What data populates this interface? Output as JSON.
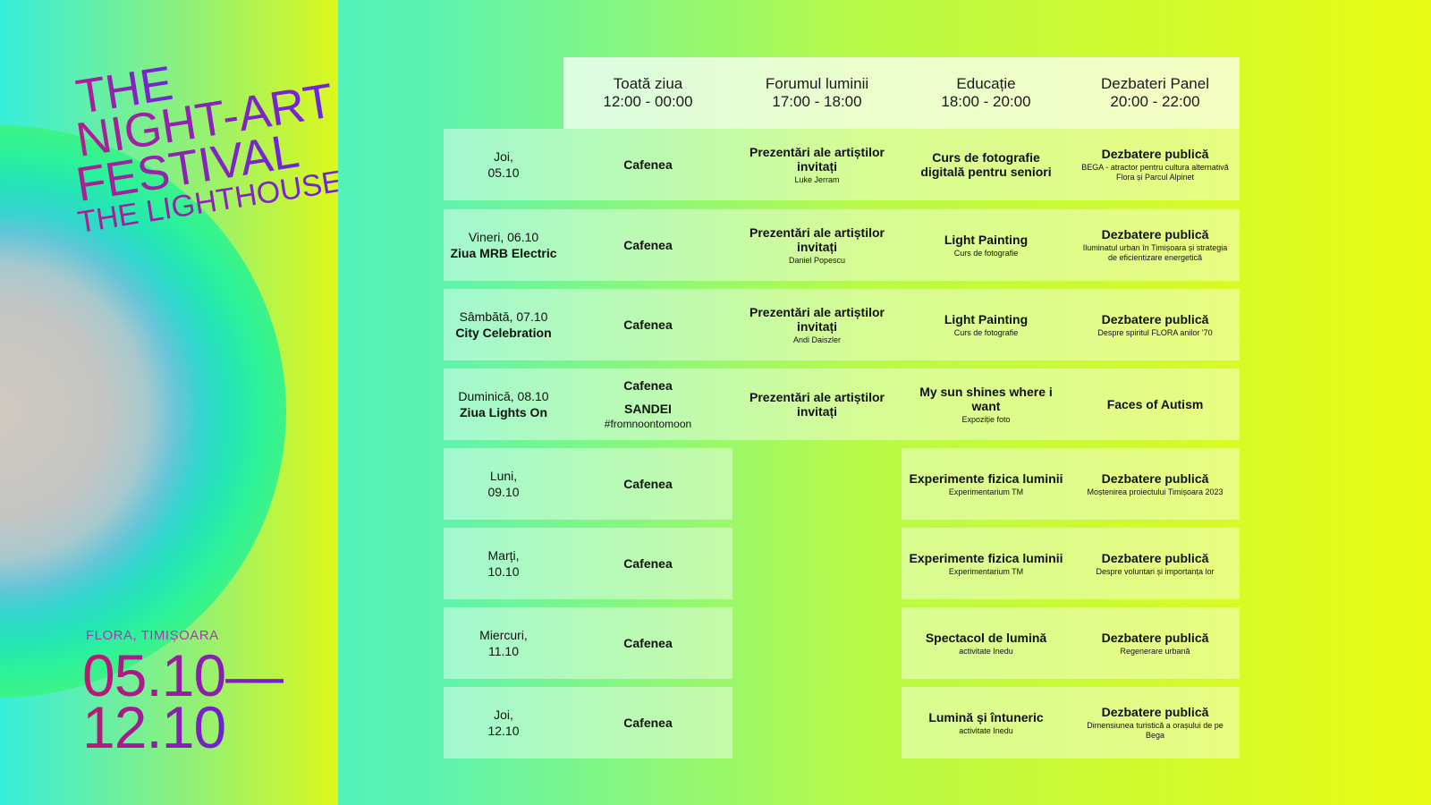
{
  "festival": {
    "title_lines": [
      "THE",
      "NIGHT-ART",
      "FESTIVAL",
      "THE LIGHTHOUSE"
    ],
    "venue": "FLORA, TIMIȘOARA",
    "date_start": "05.10—",
    "date_end": "12.10"
  },
  "colors": {
    "title_gradient": [
      "#b01f8f",
      "#6a26e0"
    ],
    "background_cyan": "#2ff0de",
    "background_yellow": "#e8fb13"
  },
  "headers": [
    {
      "name": "Toată ziua",
      "time": "12:00 - 00:00"
    },
    {
      "name": "Forumul luminii",
      "time": "17:00 - 18:00"
    },
    {
      "name": "Educație",
      "time": "18:00 - 20:00"
    },
    {
      "name": "Dezbateri Panel",
      "time": "20:00 - 22:00"
    }
  ],
  "days": [
    {
      "line1": "Joi,",
      "line2": "05.10",
      "line2_bold": false
    },
    {
      "line1": "Vineri, 06.10",
      "line2": "Ziua MRB Electric",
      "line2_bold": true
    },
    {
      "line1": "Sâmbătă, 07.10",
      "line2": "City Celebration",
      "line2_bold": true
    },
    {
      "line1": "Duminică, 08.10",
      "line2": "Ziua Lights On",
      "line2_bold": true
    },
    {
      "line1": "Luni,",
      "line2": "09.10",
      "line2_bold": false
    },
    {
      "line1": "Marți,",
      "line2": "10.10",
      "line2_bold": false
    },
    {
      "line1": "Miercuri,",
      "line2": "11.10",
      "line2_bold": false
    },
    {
      "line1": "Joi,",
      "line2": "12.10",
      "line2_bold": false
    }
  ],
  "events": [
    {
      "allday": {
        "title": "Cafenea"
      },
      "forum": {
        "title": "Prezentări ale artiștilor invitați",
        "sub": "Luke Jerram"
      },
      "edu": {
        "title": "Curs de fotografie digitală pentru seniori"
      },
      "panel": {
        "title": "Dezbatere publică",
        "sub": "BEGA - atractor pentru cultura alternativă Flora și Parcul Alpinet"
      }
    },
    {
      "allday": {
        "title": "Cafenea"
      },
      "forum": {
        "title": "Prezentări ale artiștilor invitați",
        "sub": "Daniel Popescu"
      },
      "edu": {
        "title": "Light Painting",
        "sub": "Curs de fotografie"
      },
      "panel": {
        "title": "Dezbatere publică",
        "sub": "Iluminatul urban în Timișoara și strategia de eficientizare energetică"
      }
    },
    {
      "allday": {
        "title": "Cafenea"
      },
      "forum": {
        "title": "Prezentări ale artiștilor invitați",
        "sub": "Andi Daiszler"
      },
      "edu": {
        "title": "Light Painting",
        "sub": "Curs de fotografie"
      },
      "panel": {
        "title": "Dezbatere publică",
        "sub": "Despre spiritul FLORA anilor '70"
      }
    },
    {
      "allday": {
        "title": "Cafenea",
        "title2": "SANDEI",
        "tag": "#fromnoontomoon"
      },
      "forum": {
        "title": "Prezentări ale artiștilor invitați"
      },
      "edu": {
        "title": "My sun shines where i want",
        "sub": "Expoziție foto"
      },
      "panel": {
        "title": "Faces of Autism"
      }
    },
    {
      "allday": {
        "title": "Cafenea"
      },
      "edu": {
        "title": "Experimente fizica luminii",
        "sub": "Experimentarium TM"
      },
      "panel": {
        "title": "Dezbatere publică",
        "sub": "Moștenirea proiectului Timișoara 2023"
      }
    },
    {
      "allday": {
        "title": "Cafenea"
      },
      "edu": {
        "title": "Experimente fizica luminii",
        "sub": "Experimentarium TM"
      },
      "panel": {
        "title": "Dezbatere publică",
        "sub": "Despre voluntari și importanța lor"
      }
    },
    {
      "allday": {
        "title": "Cafenea"
      },
      "edu": {
        "title": "Spectacol de lumină",
        "sub": "activitate Inedu"
      },
      "panel": {
        "title": "Dezbatere publică",
        "sub": "Regenerare urbană"
      }
    },
    {
      "allday": {
        "title": "Cafenea"
      },
      "edu": {
        "title": "Lumină și întuneric",
        "sub": "activitate Inedu"
      },
      "panel": {
        "title": "Dezbatere publică",
        "sub": "Dimensiunea turistică a orașului de pe Bega"
      }
    }
  ]
}
